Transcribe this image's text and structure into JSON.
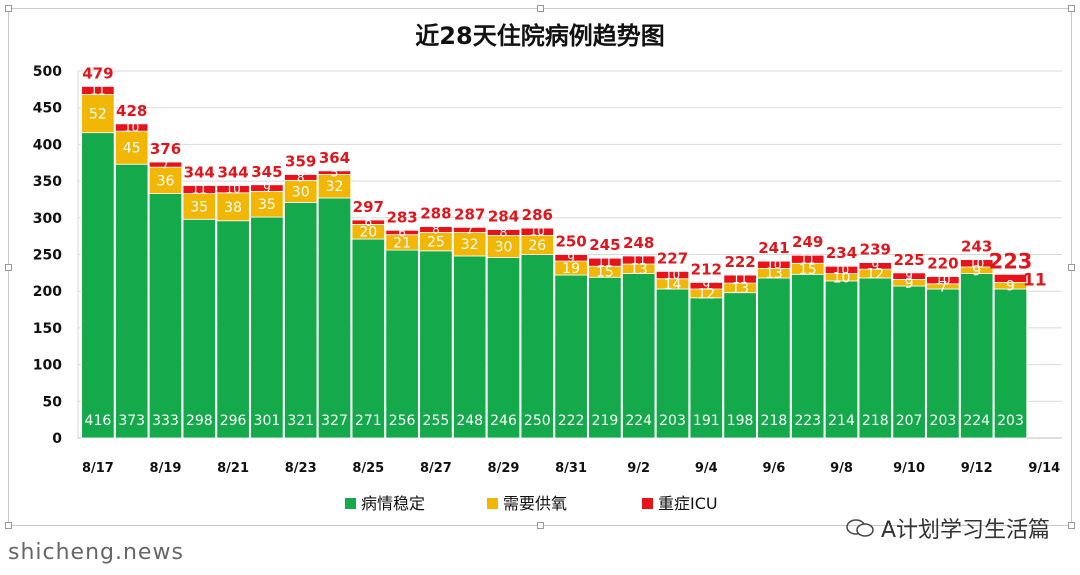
{
  "chart_data": {
    "type": "bar",
    "stacked": true,
    "title": "近28天住院病例趋势图",
    "categories": [
      "8/17",
      "8/18",
      "8/19",
      "8/20",
      "8/21",
      "8/22",
      "8/23",
      "8/24",
      "8/25",
      "8/26",
      "8/27",
      "8/28",
      "8/29",
      "8/30",
      "8/31",
      "9/1",
      "9/2",
      "9/3",
      "9/4",
      "9/5",
      "9/6",
      "9/7",
      "9/8",
      "9/9",
      "9/10",
      "9/11",
      "9/12",
      "9/13",
      "9/14"
    ],
    "x_tick_labels": [
      "8/17",
      "8/19",
      "8/21",
      "8/23",
      "8/25",
      "8/27",
      "8/29",
      "8/31",
      "9/2",
      "9/4",
      "9/6",
      "9/8",
      "9/10",
      "9/12",
      "9/14"
    ],
    "ylim": [
      0,
      500
    ],
    "yticks": [
      0,
      50,
      100,
      150,
      200,
      250,
      300,
      350,
      400,
      450,
      500
    ],
    "grid": true,
    "legend_position": "bottom",
    "series": [
      {
        "name": "病情稳定",
        "color": "#14a94a",
        "values": [
          416,
          373,
          333,
          298,
          296,
          301,
          321,
          327,
          271,
          256,
          255,
          248,
          246,
          250,
          222,
          219,
          224,
          203,
          191,
          198,
          218,
          223,
          214,
          218,
          207,
          203,
          224,
          203,
          null
        ]
      },
      {
        "name": "需要供氧",
        "color": "#f2b705",
        "values": [
          52,
          45,
          36,
          35,
          38,
          35,
          30,
          32,
          20,
          21,
          25,
          32,
          30,
          26,
          19,
          15,
          13,
          14,
          12,
          13,
          13,
          15,
          10,
          12,
          9,
          7,
          9,
          9,
          null
        ]
      },
      {
        "name": "重症ICU",
        "color": "#e8121a",
        "values": [
          11,
          10,
          7,
          11,
          10,
          9,
          8,
          5,
          6,
          6,
          8,
          7,
          8,
          10,
          9,
          11,
          11,
          10,
          9,
          11,
          10,
          11,
          10,
          9,
          9,
          10,
          10,
          11,
          null
        ]
      }
    ],
    "totals": [
      479,
      428,
      376,
      344,
      344,
      345,
      359,
      364,
      297,
      283,
      288,
      287,
      284,
      286,
      250,
      245,
      248,
      227,
      212,
      222,
      241,
      249,
      234,
      239,
      225,
      220,
      243,
      223,
      null
    ]
  },
  "watermark": {
    "text": "A计划学习生活篇",
    "icon": "wechat-icon"
  },
  "site_overlay": "shicheng.news"
}
